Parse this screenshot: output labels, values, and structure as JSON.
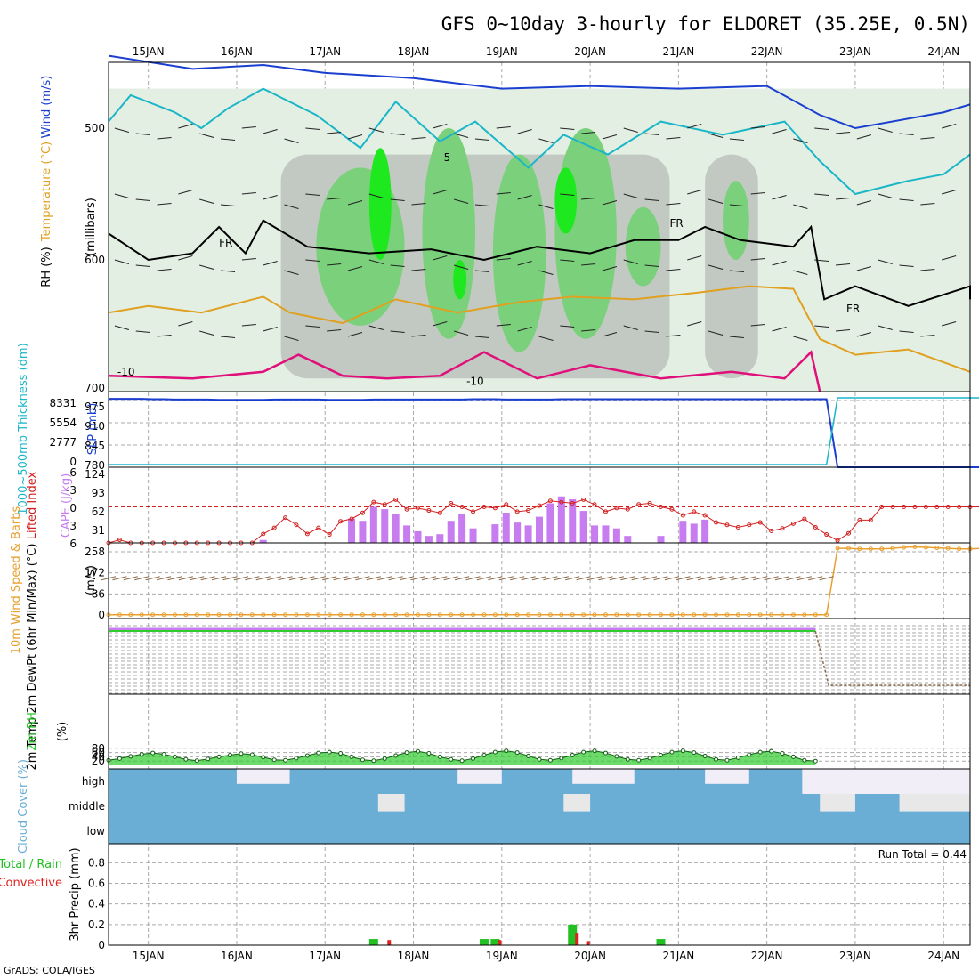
{
  "title": "GFS 0~10day 3-hourly for ELDORET (35.25E, 0.5N)",
  "footer": "GrADS: COLA/IGES",
  "colors": {
    "rh_light": "#e4efe4",
    "rh_mid": "#c2c9c2",
    "rh_green": "#7bd17b",
    "rh_bright": "#1ee81e",
    "wind_blue": "#1a3fcf",
    "temp_cyan": "#1ab6c8",
    "temp_orange": "#e0a020",
    "temp_magenta": "#e0107a",
    "fr_black": "#000000",
    "cape_bar": "#c77cf0",
    "li_red": "#d22020",
    "wind_orange": "#e8a030",
    "barb_brown": "#8a6a4a",
    "rh_fill": "#2ecc2e",
    "cloud_blue": "#6aaed6",
    "cloud_light": "#e8e8e8",
    "precip_green": "#22c022",
    "precip_red": "#e02020"
  },
  "chart_data": {
    "type": "meteogram",
    "dates": [
      "15JAN",
      "16JAN",
      "17JAN",
      "18JAN",
      "19JAN",
      "20JAN",
      "21JAN",
      "22JAN",
      "23JAN",
      "24JAN"
    ],
    "x_range_days": [
      14.55,
      24.3
    ],
    "panels": [
      {
        "name": "upper_air",
        "ylabel": "(millibars)",
        "legend": [
          {
            "label": "Wind (m/s)",
            "color": "#1a3fcf"
          },
          {
            "label": "Temperature (°C)",
            "color": "#e0a020"
          },
          {
            "label": "RH (%)",
            "color": "#1ee81e"
          }
        ],
        "yticks": [
          "500",
          "600",
          "700"
        ],
        "ylim": [
          700,
          450
        ],
        "annotations": [
          "FR",
          "FR",
          "FR",
          "-10",
          "-10",
          "-5"
        ]
      },
      {
        "name": "slp_thickness",
        "ylabel_left": "1000~500mb Thickness (dm)",
        "ylabel_right": "SLP (mb)",
        "yticks_left": [
          "0",
          "2777",
          "5554",
          "8331"
        ],
        "yticks_right": [
          "780",
          "845",
          "910",
          "975"
        ],
        "slp_series": [
          980,
          980,
          980,
          980,
          979,
          979,
          978,
          978,
          978,
          978,
          977,
          977,
          977,
          977,
          977,
          978,
          978,
          978,
          978,
          978,
          977,
          977,
          977,
          977,
          978,
          978,
          978,
          978,
          978,
          978,
          978,
          978,
          978,
          979,
          979,
          979,
          978,
          978,
          978,
          978,
          978,
          979,
          979,
          979,
          979,
          979,
          979,
          979,
          979,
          979,
          979,
          979,
          979,
          979,
          979,
          979,
          979,
          979,
          979,
          979,
          979,
          979,
          979,
          979,
          979,
          979,
          780,
          780,
          780,
          780,
          780,
          780,
          780,
          780,
          780,
          780,
          780,
          780,
          780,
          780,
          780,
          780
        ],
        "thickness_series": [
          0,
          0,
          0,
          0,
          0,
          0,
          0,
          0,
          0,
          0,
          0,
          0,
          0,
          0,
          0,
          0,
          0,
          0,
          0,
          0,
          0,
          0,
          0,
          0,
          0,
          0,
          0,
          0,
          0,
          0,
          0,
          0,
          0,
          0,
          0,
          0,
          0,
          0,
          0,
          0,
          0,
          0,
          0,
          0,
          0,
          0,
          0,
          0,
          0,
          0,
          0,
          0,
          0,
          0,
          0,
          0,
          0,
          0,
          0,
          0,
          0,
          0,
          0,
          0,
          0,
          0,
          8331,
          8331,
          8331,
          8331,
          8331,
          8331,
          8331,
          8331,
          8331,
          8331,
          8331,
          8331,
          8331,
          8331,
          8331,
          8331
        ]
      },
      {
        "name": "cape_li",
        "ylabel_left": "Lifted Index",
        "ylabel_right": "CAPE (J/kg)",
        "yticks_left": [
          "-6",
          "-3",
          "0",
          "3",
          "6"
        ],
        "yticks_right": [
          "124",
          "93",
          "62",
          "31"
        ],
        "cape_series": [
          0,
          0,
          0,
          0,
          0,
          0,
          0,
          0,
          0,
          0,
          0,
          0,
          0,
          0,
          5,
          0,
          0,
          0,
          0,
          0,
          0,
          0,
          42,
          38,
          62,
          58,
          50,
          30,
          20,
          12,
          15,
          38,
          50,
          25,
          0,
          32,
          52,
          35,
          30,
          45,
          68,
          80,
          75,
          55,
          30,
          30,
          25,
          12,
          0,
          0,
          12,
          0,
          38,
          33,
          40,
          0,
          0,
          0,
          0,
          0,
          0,
          0,
          0,
          0,
          0,
          0,
          0,
          0,
          0,
          0,
          0,
          0,
          0,
          0,
          0,
          0,
          0,
          0,
          0,
          0,
          0,
          0
        ],
        "li_series": [
          6,
          5.5,
          6,
          6,
          6,
          6,
          6,
          6,
          6,
          6,
          6,
          6,
          6,
          6,
          4.5,
          3.5,
          1.8,
          3,
          4.5,
          3.5,
          4.6,
          2.4,
          2,
          1,
          -0.8,
          -0.4,
          -1.2,
          0.4,
          0.2,
          0.6,
          1,
          -0.6,
          0,
          0.8,
          0,
          0.2,
          -0.4,
          0.8,
          0.6,
          -0.2,
          -1,
          -0.8,
          -0.6,
          -1.2,
          -0.4,
          0.8,
          0.2,
          0.4,
          -0.4,
          -0.6,
          0,
          0.4,
          1.4,
          0.8,
          1.4,
          2.6,
          3,
          3.4,
          3,
          2.6,
          4,
          3.6,
          2.8,
          2,
          3.4,
          4.6,
          5.6,
          4.4,
          2.2,
          2.2,
          0,
          0,
          0,
          0,
          0,
          0,
          0,
          0,
          0,
          0,
          0,
          0
        ]
      },
      {
        "name": "wind10m",
        "ylabel_left": "10m Wind Speed & Barbs",
        "ylabel_right": "(m/s)",
        "yticks": [
          "0",
          "86",
          "172",
          "258"
        ],
        "speed_series": [
          1,
          1,
          1,
          1,
          1,
          1,
          1,
          1,
          1,
          1,
          1,
          1,
          1,
          1,
          1,
          1,
          1,
          1,
          1,
          1,
          1,
          1,
          1,
          1,
          1,
          1,
          1,
          1,
          1,
          1,
          1,
          1,
          1,
          1,
          1,
          1,
          1,
          1,
          1,
          1,
          1,
          1,
          1,
          1,
          1,
          1,
          1,
          1,
          1,
          1,
          1,
          1,
          1,
          1,
          1,
          1,
          1,
          1,
          1,
          1,
          1,
          1,
          1,
          1,
          1,
          1,
          272,
          272,
          270,
          270,
          270,
          272,
          276,
          278,
          276,
          274,
          272,
          270,
          270,
          272,
          272,
          274
        ]
      },
      {
        "name": "temp2m",
        "ylabel": "2m Temp 2m DewPt (6hr Min/Max) (°C)"
      },
      {
        "name": "rh2m",
        "ylabel": "2m RH",
        "unit": "(%)",
        "yticks": [
          "20",
          "40",
          "60",
          "80"
        ],
        "rh_series": [
          24,
          32,
          42,
          52,
          58,
          52,
          40,
          28,
          22,
          30,
          40,
          48,
          55,
          50,
          38,
          26,
          24,
          34,
          46,
          58,
          62,
          56,
          40,
          26,
          22,
          32,
          46,
          60,
          66,
          56,
          40,
          28,
          22,
          32,
          48,
          62,
          68,
          60,
          44,
          28,
          24,
          34,
          48,
          62,
          68,
          58,
          42,
          28,
          24,
          34,
          48,
          62,
          68,
          60,
          44,
          28,
          24,
          36,
          50,
          62,
          66,
          56,
          40,
          24,
          20,
          0,
          0,
          0,
          0,
          0,
          0,
          0,
          0,
          0,
          0,
          0,
          0,
          0,
          0,
          0,
          0,
          0
        ]
      },
      {
        "name": "cloud",
        "ylabel": "Cloud Cover (%)",
        "levels": [
          "high",
          "middle",
          "low"
        ]
      },
      {
        "name": "precip",
        "ylabel_left": "Total / Rain",
        "ylabel_left2": "Convective",
        "ylabel_right": "3hr Precip (mm)",
        "yticks": [
          "0",
          "0.2",
          "0.4",
          "0.6",
          "0.8"
        ],
        "ylim": [
          0,
          0.95
        ],
        "total_series": [
          0,
          0,
          0,
          0,
          0,
          0,
          0,
          0,
          0,
          0,
          0,
          0,
          0,
          0,
          0,
          0,
          0,
          0,
          0,
          0,
          0,
          0,
          0,
          0,
          0.06,
          0,
          0,
          0,
          0,
          0,
          0,
          0,
          0,
          0,
          0.06,
          0.06,
          0,
          0,
          0,
          0,
          0,
          0,
          0.2,
          0,
          0,
          0,
          0,
          0,
          0,
          0,
          0.06,
          0,
          0,
          0,
          0,
          0,
          0,
          0,
          0,
          0,
          0,
          0,
          0,
          0,
          0,
          0,
          0,
          0,
          0,
          0,
          0,
          0,
          0,
          0,
          0,
          0,
          0,
          0,
          0,
          0,
          0,
          0
        ],
        "conv_series": [
          0,
          0,
          0,
          0,
          0,
          0,
          0,
          0,
          0,
          0,
          0,
          0,
          0,
          0,
          0,
          0,
          0,
          0,
          0,
          0,
          0,
          0,
          0,
          0,
          0,
          0.05,
          0,
          0,
          0,
          0,
          0,
          0,
          0,
          0,
          0,
          0.05,
          0,
          0,
          0,
          0,
          0,
          0,
          0.12,
          0.04,
          0,
          0,
          0,
          0,
          0,
          0,
          0,
          0,
          0,
          0,
          0,
          0,
          0,
          0,
          0,
          0,
          0,
          0,
          0,
          0,
          0,
          0,
          0,
          0,
          0,
          0,
          0,
          0,
          0,
          0,
          0,
          0,
          0,
          0,
          0,
          0,
          0,
          0
        ],
        "run_total_label": "Run Total = 0.44"
      }
    ]
  }
}
